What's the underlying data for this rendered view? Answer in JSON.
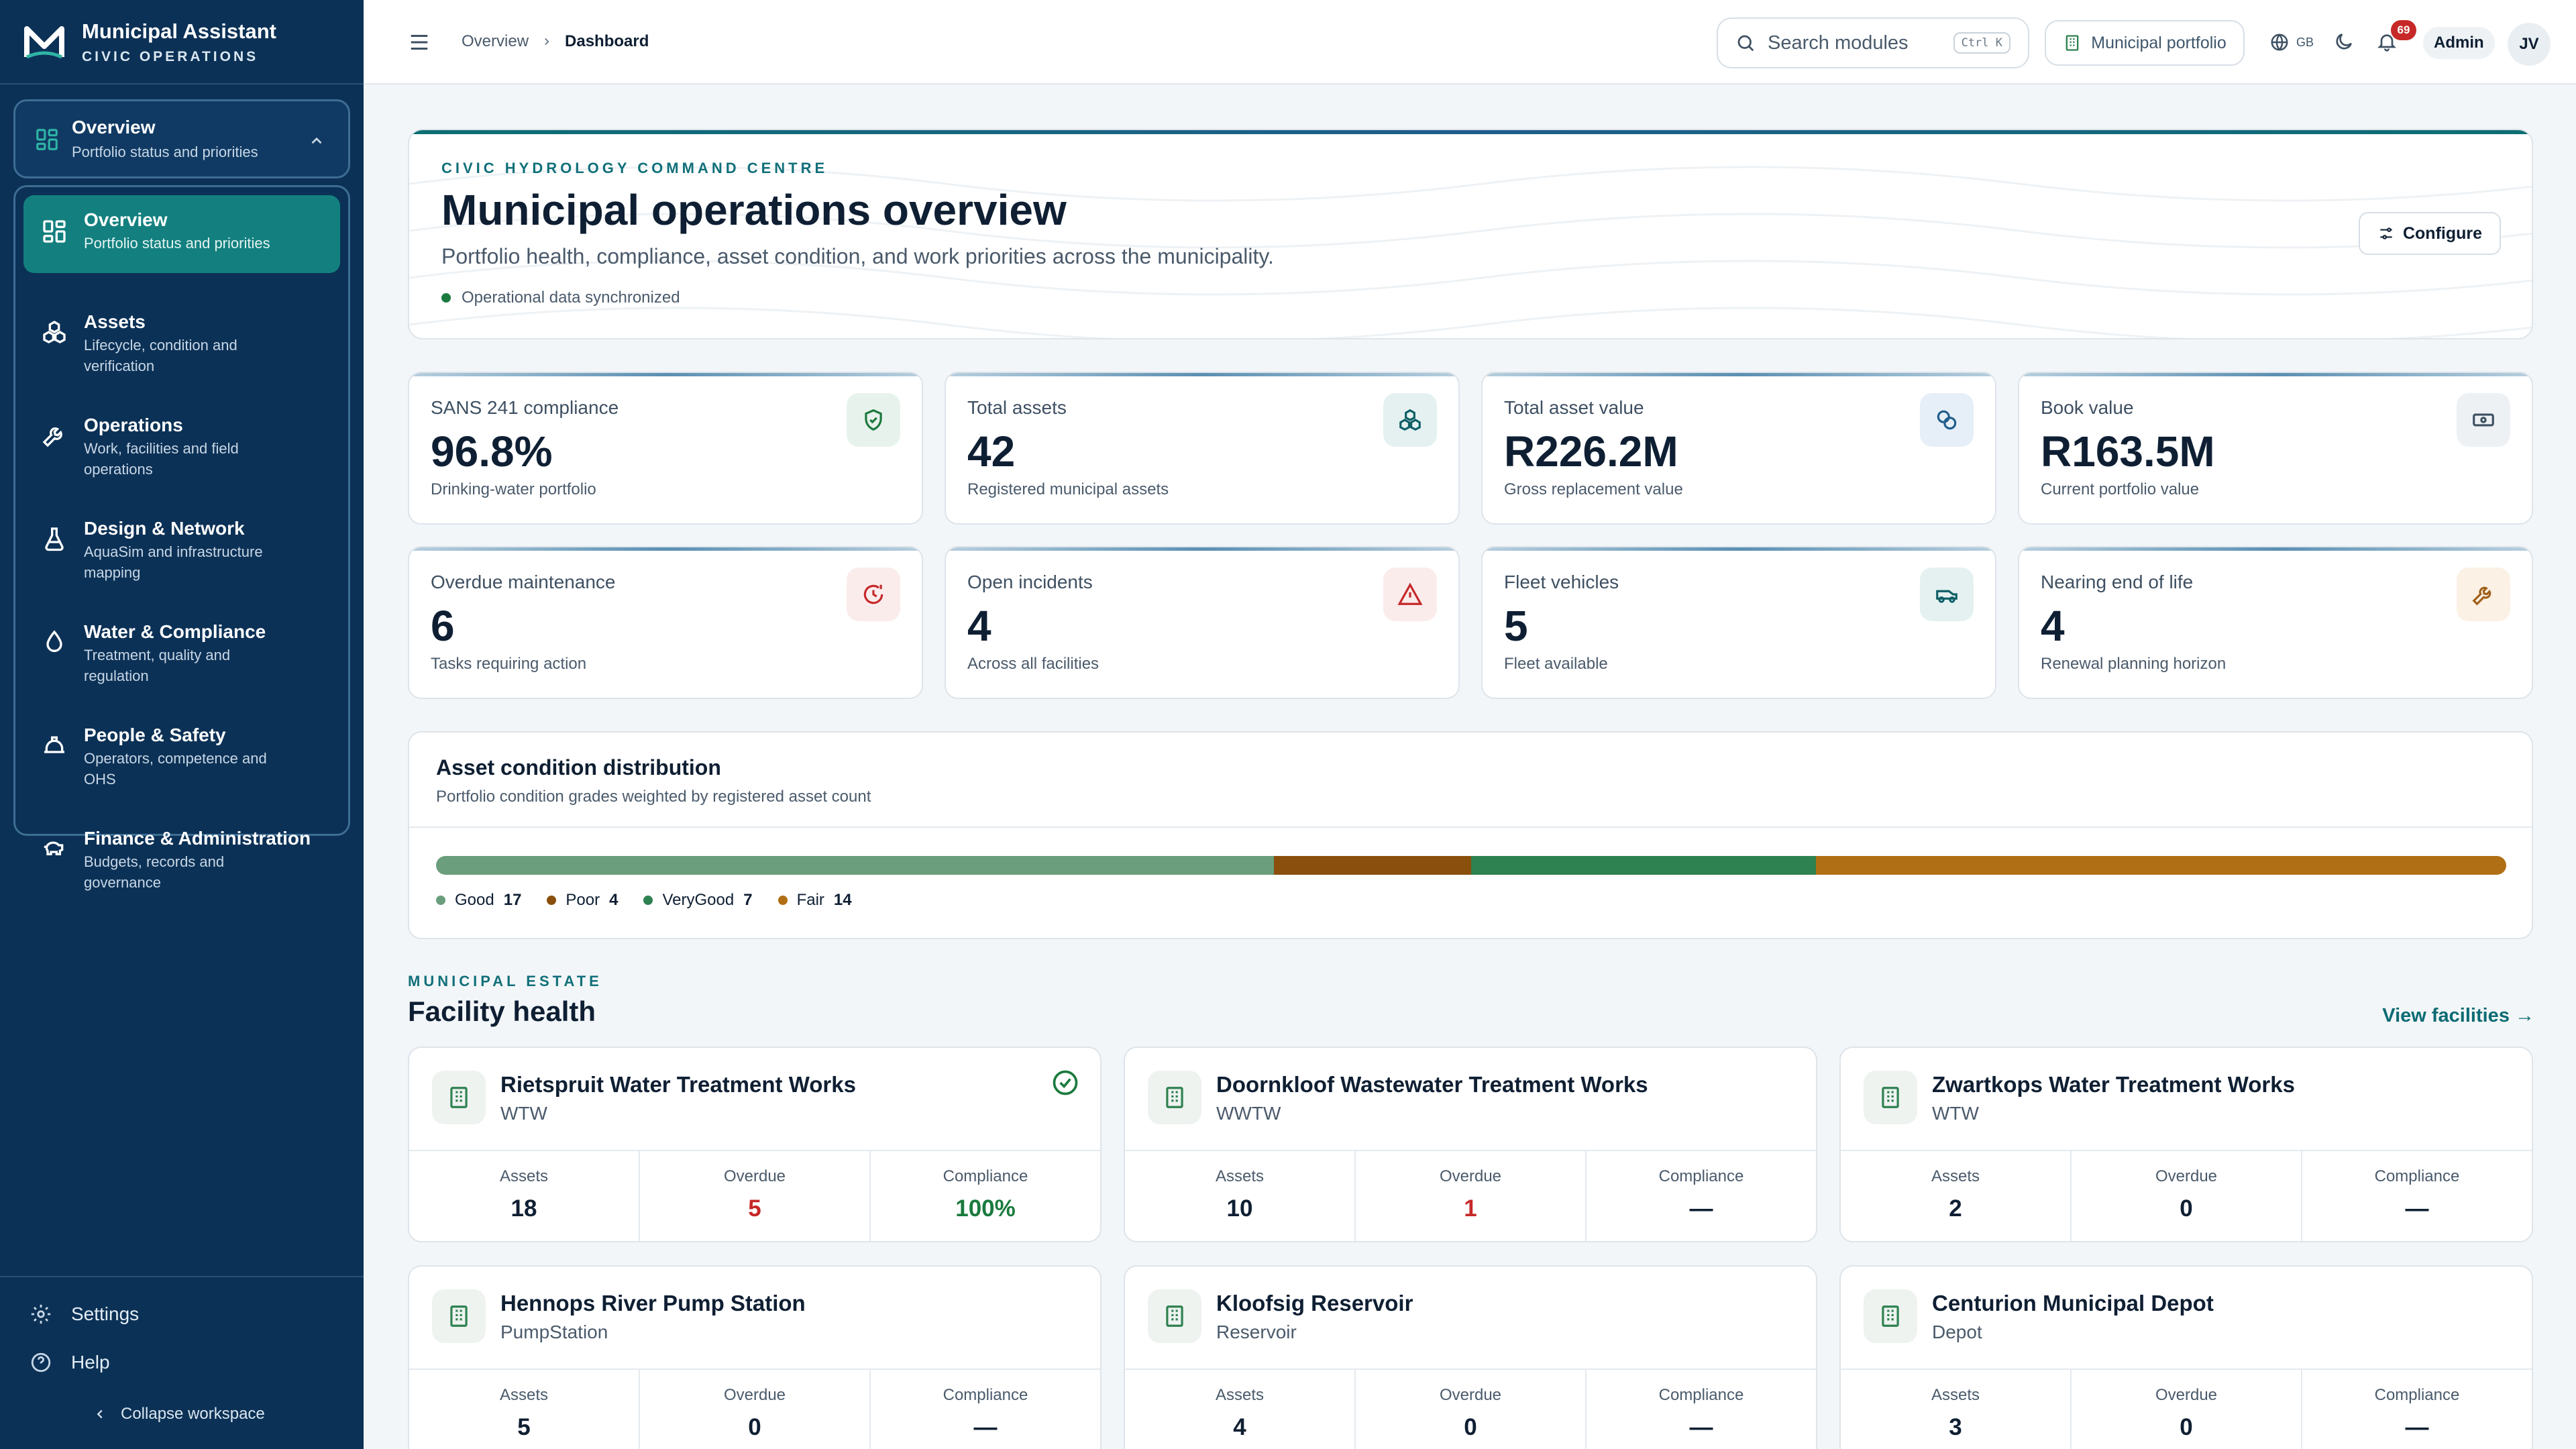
{
  "app": {
    "title": "Municipal Assistant",
    "subtitle": "CIVIC OPERATIONS"
  },
  "sidebar": {
    "current": {
      "label": "Overview",
      "desc": "Portfolio status and priorities"
    },
    "items": [
      {
        "label": "Overview",
        "desc": "Portfolio status and priorities",
        "icon": "grid-icon"
      },
      {
        "label": "Assets",
        "desc": "Lifecycle, condition and verification",
        "icon": "cubes-icon"
      },
      {
        "label": "Operations",
        "desc": "Work, facilities and field operations",
        "icon": "wrench-icon"
      },
      {
        "label": "Design & Network",
        "desc": "AquaSim and infrastructure mapping",
        "icon": "flask-icon"
      },
      {
        "label": "Water & Compliance",
        "desc": "Treatment, quality and regulation",
        "icon": "droplet-icon"
      },
      {
        "label": "People & Safety",
        "desc": "Operators, competence and OHS",
        "icon": "hardhat-icon"
      },
      {
        "label": "Finance & Administration",
        "desc": "Budgets, records and governance",
        "icon": "piggy-bank-icon"
      }
    ],
    "settings": "Settings",
    "help": "Help",
    "collapse": "Collapse workspace"
  },
  "topbar": {
    "breadcrumb": [
      "Overview",
      "Dashboard"
    ],
    "search_placeholder": "Search modules",
    "search_shortcut": "Ctrl K",
    "portfolio": "Municipal portfolio",
    "lang": "GB",
    "notifications": "69",
    "user": "Admin",
    "initials": "JV"
  },
  "hero": {
    "eyebrow": "CIVIC HYDROLOGY COMMAND CENTRE",
    "title": "Municipal operations overview",
    "description": "Portfolio health, compliance, asset condition, and work priorities across the municipality.",
    "status": "Operational data synchronized",
    "configure": "Configure"
  },
  "kpis": [
    {
      "label": "SANS 241 compliance",
      "value": "96.8%",
      "sub": "Drinking-water portfolio",
      "icon": "shield-check-icon",
      "tone": "#1b7a3e"
    },
    {
      "label": "Total assets",
      "value": "42",
      "sub": "Registered municipal assets",
      "icon": "cubes-icon",
      "tone": "#0e5f66"
    },
    {
      "label": "Total asset value",
      "value": "R226.2M",
      "sub": "Gross replacement value",
      "icon": "coins-icon",
      "tone": "#1f5d8c"
    },
    {
      "label": "Book value",
      "value": "R163.5M",
      "sub": "Current portfolio value",
      "icon": "banknote-icon",
      "tone": "#3e5062"
    },
    {
      "label": "Overdue maintenance",
      "value": "6",
      "sub": "Tasks requiring action",
      "icon": "clock-alert-icon",
      "tone": "#c62828"
    },
    {
      "label": "Open incidents",
      "value": "4",
      "sub": "Across all facilities",
      "icon": "warning-icon",
      "tone": "#c62828"
    },
    {
      "label": "Fleet vehicles",
      "value": "5",
      "sub": "Fleet available",
      "icon": "truck-icon",
      "tone": "#0e5f66"
    },
    {
      "label": "Nearing end of life",
      "value": "4",
      "sub": "Renewal planning horizon",
      "icon": "wrench-icon",
      "tone": "#a0601a"
    }
  ],
  "condition": {
    "title": "Asset condition distribution",
    "subtitle": "Portfolio condition grades weighted by registered asset count",
    "segments": [
      {
        "label": "Good",
        "count": 17,
        "color": "#6a9e7c"
      },
      {
        "label": "Poor",
        "count": 4,
        "color": "#8a4f0c"
      },
      {
        "label": "VeryGood",
        "count": 7,
        "color": "#2e8150"
      },
      {
        "label": "Fair",
        "count": 14,
        "color": "#b06f15"
      }
    ]
  },
  "facilities": {
    "eyebrow": "MUNICIPAL ESTATE",
    "title": "Facility health",
    "link": "View facilities →",
    "col_labels": [
      "Assets",
      "Overdue",
      "Compliance"
    ],
    "items": [
      {
        "name": "Rietspruit Water Treatment Works",
        "type": "WTW",
        "assets": "18",
        "overdue": "5",
        "compliance": "100%",
        "check": true
      },
      {
        "name": "Doornkloof Wastewater Treatment Works",
        "type": "WWTW",
        "assets": "10",
        "overdue": "1",
        "compliance": "—",
        "check": false
      },
      {
        "name": "Zwartkops Water Treatment Works",
        "type": "WTW",
        "assets": "2",
        "overdue": "0",
        "compliance": "—",
        "check": false
      },
      {
        "name": "Hennops River Pump Station",
        "type": "PumpStation",
        "assets": "5",
        "overdue": "0",
        "compliance": "—",
        "check": false
      },
      {
        "name": "Kloofsig Reservoir",
        "type": "Reservoir",
        "assets": "4",
        "overdue": "0",
        "compliance": "—",
        "check": false
      },
      {
        "name": "Centurion Municipal Depot",
        "type": "Depot",
        "assets": "3",
        "overdue": "0",
        "compliance": "—",
        "check": false
      }
    ]
  }
}
